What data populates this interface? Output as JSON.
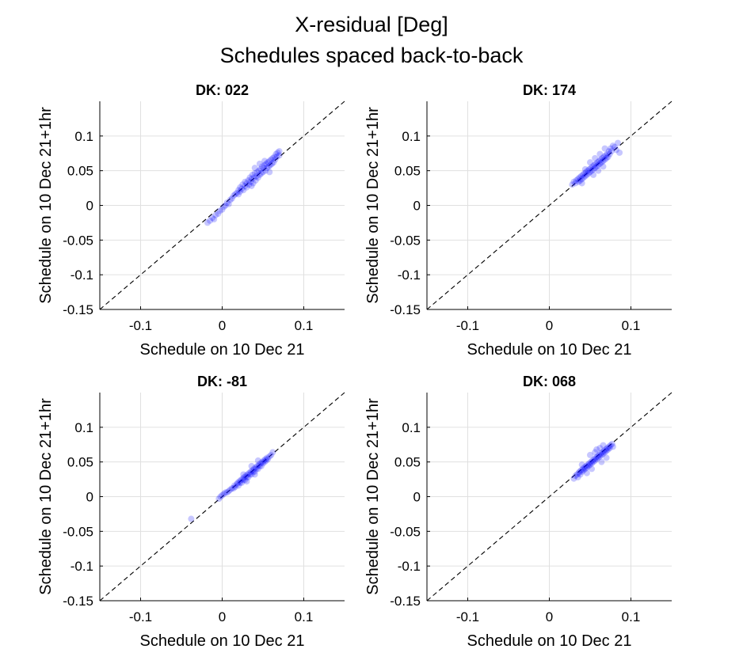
{
  "figure": {
    "title_line1": "X-residual [Deg]",
    "title_line2": "Schedules spaced back-to-back"
  },
  "colors": {
    "points": "#0000ff",
    "reference_line": "#000000",
    "grid": "#e0e0e0",
    "axes": "#000000"
  },
  "chart_data": [
    {
      "type": "scatter",
      "title": "DK: 022",
      "xlabel": "Schedule on 10 Dec 21",
      "ylabel": "Schedule on 10 Dec 21+1hr",
      "xlim": [
        -0.15,
        0.15
      ],
      "ylim": [
        -0.15,
        0.15
      ],
      "xticks": [
        -0.1,
        0,
        0.1
      ],
      "xtick_labels": [
        "-0.1",
        "0",
        "0.1"
      ],
      "yticks": [
        -0.15,
        -0.1,
        -0.05,
        0,
        0.05,
        0.1
      ],
      "ytick_labels": [
        "-0.15",
        "-0.1",
        "-0.05",
        "0",
        "0.05",
        "0.1"
      ],
      "grid": true,
      "reference_line": "y = x (dashed)",
      "points": [
        [
          -0.018,
          -0.025
        ],
        [
          -0.015,
          -0.022
        ],
        [
          -0.012,
          -0.018
        ],
        [
          -0.01,
          -0.02
        ],
        [
          -0.008,
          -0.014
        ],
        [
          -0.005,
          -0.012
        ],
        [
          -0.003,
          -0.008
        ],
        [
          0.0,
          -0.006
        ],
        [
          0.002,
          -0.002
        ],
        [
          0.004,
          0.0
        ],
        [
          0.006,
          0.004
        ],
        [
          0.008,
          0.002
        ],
        [
          0.01,
          0.008
        ],
        [
          0.012,
          0.01
        ],
        [
          0.014,
          0.014
        ],
        [
          0.016,
          0.016
        ],
        [
          0.018,
          0.018
        ],
        [
          0.02,
          0.016
        ],
        [
          0.02,
          0.022
        ],
        [
          0.022,
          0.02
        ],
        [
          0.022,
          0.026
        ],
        [
          0.024,
          0.024
        ],
        [
          0.025,
          0.03
        ],
        [
          0.026,
          0.022
        ],
        [
          0.028,
          0.028
        ],
        [
          0.028,
          0.034
        ],
        [
          0.03,
          0.026
        ],
        [
          0.03,
          0.032
        ],
        [
          0.032,
          0.036
        ],
        [
          0.033,
          0.03
        ],
        [
          0.034,
          0.04
        ],
        [
          0.035,
          0.034
        ],
        [
          0.036,
          0.038
        ],
        [
          0.037,
          0.044
        ],
        [
          0.038,
          0.032
        ],
        [
          0.039,
          0.04
        ],
        [
          0.04,
          0.046
        ],
        [
          0.041,
          0.036
        ],
        [
          0.042,
          0.042
        ],
        [
          0.043,
          0.048
        ],
        [
          0.044,
          0.04
        ],
        [
          0.045,
          0.05
        ],
        [
          0.046,
          0.044
        ],
        [
          0.047,
          0.052
        ],
        [
          0.048,
          0.046
        ],
        [
          0.049,
          0.056
        ],
        [
          0.05,
          0.048
        ],
        [
          0.051,
          0.054
        ],
        [
          0.052,
          0.058
        ],
        [
          0.053,
          0.05
        ],
        [
          0.054,
          0.06
        ],
        [
          0.055,
          0.054
        ],
        [
          0.056,
          0.062
        ],
        [
          0.057,
          0.056
        ],
        [
          0.058,
          0.064
        ],
        [
          0.059,
          0.058
        ],
        [
          0.06,
          0.066
        ],
        [
          0.061,
          0.06
        ],
        [
          0.062,
          0.068
        ],
        [
          0.063,
          0.062
        ],
        [
          0.064,
          0.07
        ],
        [
          0.065,
          0.066
        ],
        [
          0.066,
          0.074
        ],
        [
          0.067,
          0.07
        ],
        [
          0.068,
          0.076
        ],
        [
          0.07,
          0.072
        ],
        [
          0.07,
          0.078
        ],
        [
          0.046,
          0.06
        ],
        [
          0.04,
          0.054
        ],
        [
          0.052,
          0.064
        ],
        [
          0.058,
          0.048
        ],
        [
          0.036,
          0.028
        ]
      ]
    },
    {
      "type": "scatter",
      "title": "DK: 174",
      "xlabel": "Schedule on 10 Dec 21",
      "ylabel": "Schedule on 10 Dec 21+1hr",
      "xlim": [
        -0.15,
        0.15
      ],
      "ylim": [
        -0.15,
        0.15
      ],
      "xticks": [
        -0.1,
        0,
        0.1
      ],
      "xtick_labels": [
        "-0.1",
        "0",
        "0.1"
      ],
      "yticks": [
        -0.15,
        -0.1,
        -0.05,
        0,
        0.05,
        0.1
      ],
      "ytick_labels": [
        "-0.15",
        "-0.1",
        "-0.05",
        "0",
        "0.05",
        "0.1"
      ],
      "grid": true,
      "reference_line": "y = x (dashed)",
      "points": [
        [
          0.028,
          0.03
        ],
        [
          0.03,
          0.034
        ],
        [
          0.032,
          0.032
        ],
        [
          0.033,
          0.036
        ],
        [
          0.035,
          0.038
        ],
        [
          0.036,
          0.034
        ],
        [
          0.037,
          0.04
        ],
        [
          0.038,
          0.036
        ],
        [
          0.039,
          0.042
        ],
        [
          0.04,
          0.038
        ],
        [
          0.041,
          0.044
        ],
        [
          0.042,
          0.04
        ],
        [
          0.043,
          0.046
        ],
        [
          0.044,
          0.042
        ],
        [
          0.045,
          0.048
        ],
        [
          0.046,
          0.044
        ],
        [
          0.047,
          0.05
        ],
        [
          0.048,
          0.046
        ],
        [
          0.049,
          0.052
        ],
        [
          0.05,
          0.048
        ],
        [
          0.051,
          0.054
        ],
        [
          0.052,
          0.05
        ],
        [
          0.053,
          0.056
        ],
        [
          0.054,
          0.052
        ],
        [
          0.055,
          0.058
        ],
        [
          0.056,
          0.054
        ],
        [
          0.057,
          0.06
        ],
        [
          0.058,
          0.056
        ],
        [
          0.059,
          0.062
        ],
        [
          0.06,
          0.058
        ],
        [
          0.061,
          0.064
        ],
        [
          0.062,
          0.06
        ],
        [
          0.063,
          0.066
        ],
        [
          0.064,
          0.062
        ],
        [
          0.065,
          0.068
        ],
        [
          0.066,
          0.064
        ],
        [
          0.067,
          0.07
        ],
        [
          0.068,
          0.066
        ],
        [
          0.069,
          0.072
        ],
        [
          0.07,
          0.068
        ],
        [
          0.071,
          0.074
        ],
        [
          0.072,
          0.07
        ],
        [
          0.073,
          0.078
        ],
        [
          0.074,
          0.074
        ],
        [
          0.075,
          0.082
        ],
        [
          0.076,
          0.078
        ],
        [
          0.078,
          0.086
        ],
        [
          0.08,
          0.084
        ],
        [
          0.082,
          0.08
        ],
        [
          0.084,
          0.09
        ],
        [
          0.086,
          0.076
        ],
        [
          0.05,
          0.062
        ],
        [
          0.056,
          0.068
        ],
        [
          0.062,
          0.074
        ],
        [
          0.066,
          0.056
        ],
        [
          0.044,
          0.052
        ],
        [
          0.04,
          0.032
        ],
        [
          0.054,
          0.044
        ],
        [
          0.068,
          0.082
        ],
        [
          0.06,
          0.05
        ]
      ]
    },
    {
      "type": "scatter",
      "title": "DK: -81",
      "xlabel": "Schedule on 10 Dec 21",
      "ylabel": "Schedule on 10 Dec 21+1hr",
      "xlim": [
        -0.15,
        0.15
      ],
      "ylim": [
        -0.15,
        0.15
      ],
      "xticks": [
        -0.1,
        0,
        0.1
      ],
      "xtick_labels": [
        "-0.1",
        "0",
        "0.1"
      ],
      "yticks": [
        -0.15,
        -0.1,
        -0.05,
        0,
        0.05,
        0.1
      ],
      "ytick_labels": [
        "-0.15",
        "-0.1",
        "-0.05",
        "0",
        "0.05",
        "0.1"
      ],
      "grid": true,
      "reference_line": "y = x (dashed)",
      "points": [
        [
          -0.038,
          -0.032
        ],
        [
          -0.004,
          -0.003
        ],
        [
          -0.002,
          0.0
        ],
        [
          0.0,
          0.002
        ],
        [
          0.002,
          0.004
        ],
        [
          0.004,
          0.006
        ],
        [
          0.006,
          0.006
        ],
        [
          0.008,
          0.008
        ],
        [
          0.01,
          0.01
        ],
        [
          0.012,
          0.012
        ],
        [
          0.014,
          0.012
        ],
        [
          0.015,
          0.016
        ],
        [
          0.016,
          0.014
        ],
        [
          0.018,
          0.018
        ],
        [
          0.019,
          0.02
        ],
        [
          0.02,
          0.016
        ],
        [
          0.021,
          0.022
        ],
        [
          0.022,
          0.02
        ],
        [
          0.023,
          0.024
        ],
        [
          0.024,
          0.02
        ],
        [
          0.025,
          0.026
        ],
        [
          0.026,
          0.024
        ],
        [
          0.027,
          0.028
        ],
        [
          0.028,
          0.024
        ],
        [
          0.029,
          0.03
        ],
        [
          0.03,
          0.028
        ],
        [
          0.031,
          0.032
        ],
        [
          0.032,
          0.028
        ],
        [
          0.033,
          0.034
        ],
        [
          0.034,
          0.032
        ],
        [
          0.035,
          0.036
        ],
        [
          0.036,
          0.032
        ],
        [
          0.037,
          0.038
        ],
        [
          0.038,
          0.036
        ],
        [
          0.039,
          0.04
        ],
        [
          0.04,
          0.036
        ],
        [
          0.041,
          0.042
        ],
        [
          0.042,
          0.04
        ],
        [
          0.043,
          0.044
        ],
        [
          0.044,
          0.04
        ],
        [
          0.045,
          0.046
        ],
        [
          0.046,
          0.044
        ],
        [
          0.047,
          0.048
        ],
        [
          0.048,
          0.044
        ],
        [
          0.049,
          0.05
        ],
        [
          0.05,
          0.048
        ],
        [
          0.051,
          0.052
        ],
        [
          0.052,
          0.05
        ],
        [
          0.053,
          0.054
        ],
        [
          0.054,
          0.052
        ],
        [
          0.055,
          0.056
        ],
        [
          0.056,
          0.054
        ],
        [
          0.058,
          0.058
        ],
        [
          0.06,
          0.06
        ],
        [
          0.062,
          0.064
        ],
        [
          0.03,
          0.022
        ],
        [
          0.04,
          0.032
        ],
        [
          0.044,
          0.052
        ],
        [
          0.036,
          0.044
        ],
        [
          0.026,
          0.032
        ]
      ]
    },
    {
      "type": "scatter",
      "title": "DK: 068",
      "xlabel": "Schedule on 10 Dec 21",
      "ylabel": "Schedule on 10 Dec 21+1hr",
      "xlim": [
        -0.15,
        0.15
      ],
      "ylim": [
        -0.15,
        0.15
      ],
      "xticks": [
        -0.1,
        0,
        0.1
      ],
      "xtick_labels": [
        "-0.1",
        "0",
        "0.1"
      ],
      "yticks": [
        -0.15,
        -0.1,
        -0.05,
        0,
        0.05,
        0.1
      ],
      "ytick_labels": [
        "-0.15",
        "-0.1",
        "-0.05",
        "0",
        "0.05",
        "0.1"
      ],
      "grid": true,
      "reference_line": "y = x (dashed)",
      "points": [
        [
          0.03,
          0.026
        ],
        [
          0.032,
          0.03
        ],
        [
          0.034,
          0.032
        ],
        [
          0.035,
          0.028
        ],
        [
          0.036,
          0.034
        ],
        [
          0.037,
          0.036
        ],
        [
          0.038,
          0.032
        ],
        [
          0.039,
          0.038
        ],
        [
          0.04,
          0.036
        ],
        [
          0.041,
          0.04
        ],
        [
          0.042,
          0.038
        ],
        [
          0.043,
          0.042
        ],
        [
          0.044,
          0.04
        ],
        [
          0.045,
          0.044
        ],
        [
          0.046,
          0.042
        ],
        [
          0.047,
          0.046
        ],
        [
          0.048,
          0.044
        ],
        [
          0.049,
          0.048
        ],
        [
          0.05,
          0.046
        ],
        [
          0.051,
          0.05
        ],
        [
          0.052,
          0.048
        ],
        [
          0.053,
          0.052
        ],
        [
          0.054,
          0.05
        ],
        [
          0.055,
          0.054
        ],
        [
          0.056,
          0.052
        ],
        [
          0.057,
          0.056
        ],
        [
          0.058,
          0.054
        ],
        [
          0.059,
          0.058
        ],
        [
          0.06,
          0.056
        ],
        [
          0.061,
          0.06
        ],
        [
          0.062,
          0.058
        ],
        [
          0.063,
          0.062
        ],
        [
          0.064,
          0.06
        ],
        [
          0.065,
          0.064
        ],
        [
          0.066,
          0.062
        ],
        [
          0.067,
          0.066
        ],
        [
          0.068,
          0.064
        ],
        [
          0.069,
          0.068
        ],
        [
          0.07,
          0.066
        ],
        [
          0.071,
          0.07
        ],
        [
          0.072,
          0.068
        ],
        [
          0.073,
          0.072
        ],
        [
          0.074,
          0.07
        ],
        [
          0.075,
          0.074
        ],
        [
          0.077,
          0.076
        ],
        [
          0.078,
          0.072
        ],
        [
          0.058,
          0.068
        ],
        [
          0.062,
          0.07
        ],
        [
          0.052,
          0.04
        ],
        [
          0.046,
          0.034
        ],
        [
          0.064,
          0.05
        ],
        [
          0.07,
          0.056
        ],
        [
          0.04,
          0.046
        ],
        [
          0.05,
          0.06
        ],
        [
          0.066,
          0.074
        ],
        [
          0.056,
          0.064
        ]
      ]
    }
  ]
}
